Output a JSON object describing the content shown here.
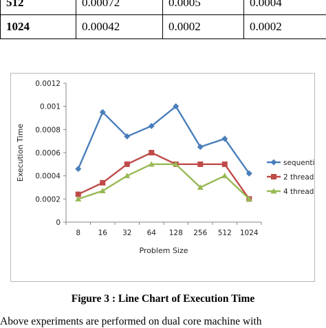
{
  "table": {
    "rows": [
      {
        "label": "512",
        "values": [
          "0.00072",
          "0.0005",
          "0.0004"
        ]
      },
      {
        "label": "1024",
        "values": [
          "0.00042",
          "0.0002",
          "0.0002"
        ]
      }
    ]
  },
  "chart_data": {
    "type": "line",
    "title": "",
    "xlabel": "Problem Size",
    "ylabel": "Execution Time",
    "categories": [
      "8",
      "16",
      "32",
      "64",
      "128",
      "256",
      "512",
      "1024"
    ],
    "ylim": [
      0,
      0.0012
    ],
    "yticks": [
      "0",
      "0.0002",
      "0.0004",
      "0.0006",
      "0.0008",
      "0.001",
      "0.0012"
    ],
    "grid": false,
    "legend_position": "right",
    "series": [
      {
        "name": "sequential",
        "color": "#4a7ebb",
        "marker": "diamond",
        "values": [
          0.00046,
          0.00095,
          0.00074,
          0.00083,
          0.001,
          0.00065,
          0.00072,
          0.00042
        ]
      },
      {
        "name": "2 thread",
        "color": "#be4b48",
        "marker": "square",
        "values": [
          0.00024,
          0.00034,
          0.0005,
          0.0006,
          0.0005,
          0.0005,
          0.0005,
          0.0002
        ]
      },
      {
        "name": "4 thread",
        "color": "#98b954",
        "marker": "triangle",
        "values": [
          0.0002,
          0.00027,
          0.0004,
          0.0005,
          0.0005,
          0.0003,
          0.0004,
          0.0002
        ]
      }
    ]
  },
  "caption": "Figure 3 : Line Chart of Execution Time",
  "body_text": "Above experiments are performed on dual core machine with"
}
